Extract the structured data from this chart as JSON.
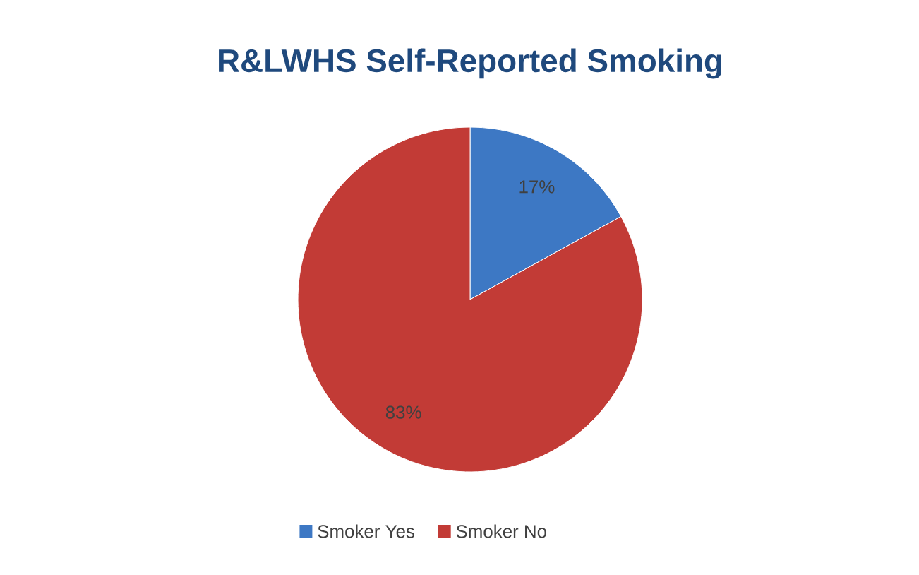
{
  "chart_data": {
    "type": "pie",
    "title": "R&LWHS Self-Reported Smoking",
    "categories": [
      "Smoker Yes",
      "Smoker No"
    ],
    "values": [
      17,
      83
    ],
    "colors": [
      "#3d78c4",
      "#c23b36"
    ],
    "value_labels": [
      "17%",
      "83%"
    ],
    "legend": "bottom"
  }
}
